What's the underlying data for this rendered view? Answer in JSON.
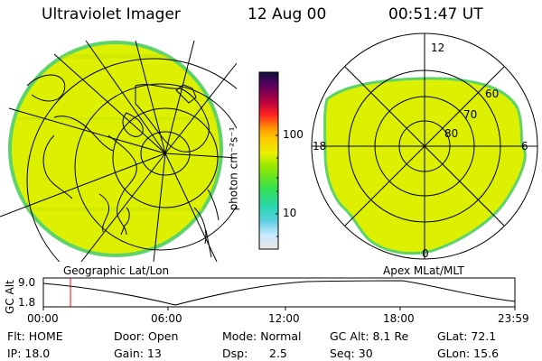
{
  "header": {
    "instrument": "Ultraviolet Imager",
    "date": "12 Aug 00",
    "time": "00:51:47 UT"
  },
  "colorbar": {
    "unit_label": "photon cm⁻²s⁻¹",
    "ticks": [
      "100",
      "10"
    ]
  },
  "left_panel": {
    "caption": "Geographic Lat/Lon"
  },
  "right_panel": {
    "caption": "Apex MLat/MLT",
    "mlt_labels": {
      "top": "12",
      "left": "18",
      "right": "6",
      "bottom": "0"
    },
    "mlat_labels": [
      "60",
      "70",
      "80"
    ]
  },
  "altitude_plot": {
    "ylabel": "GC Alt",
    "y_ticks": [
      "9.0",
      "1.8"
    ],
    "x_ticks": [
      "00:00",
      "06:00",
      "12:00",
      "18:00",
      "23:59"
    ]
  },
  "info": {
    "flt": "Flt: HOME",
    "ip": "IP: 18.0",
    "door": "Door: Open",
    "gain": "Gain: 13",
    "mode": "Mode: Normal",
    "dsp_label": "Dsp:",
    "dsp_value": "2.5",
    "gc_alt": "GC Alt: 8.1 Re",
    "seq": "Seq: 30",
    "glat": "GLat:  72.1",
    "glon": "GLon:  15.6"
  },
  "colors": {
    "aurora_fill": "#dcf000",
    "aurora_edge": "#5ed36a",
    "marker": "#ff0000"
  }
}
